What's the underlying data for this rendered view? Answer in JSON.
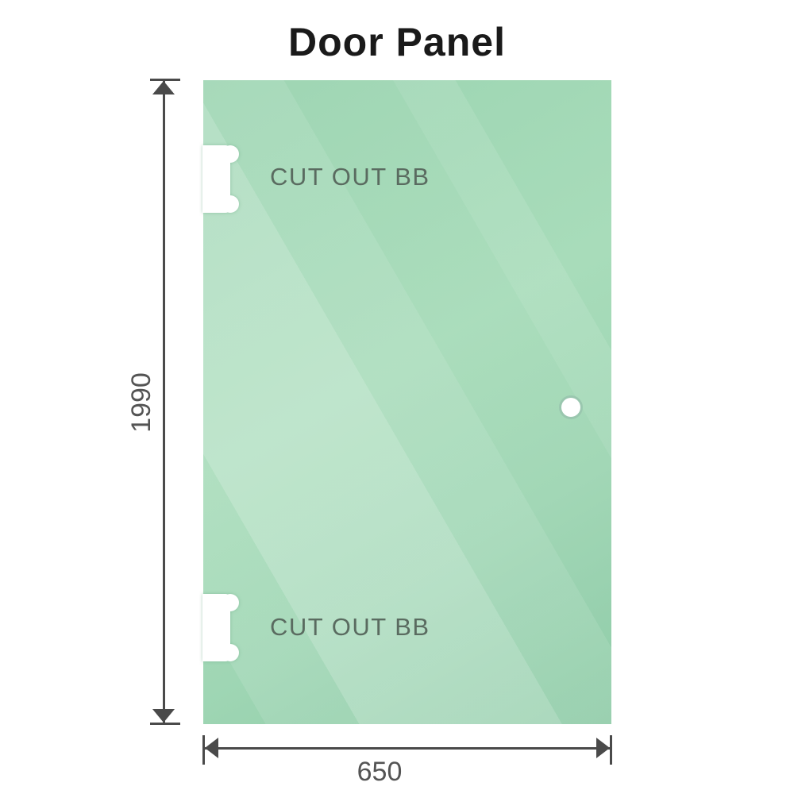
{
  "title": "Door Panel",
  "diagram": {
    "dimensions": {
      "height": "1990",
      "width": "650"
    },
    "cutouts": [
      {
        "label": "CUT OUT BB",
        "position": "top-left"
      },
      {
        "label": "CUT OUT BB",
        "position": "bottom-left"
      }
    ],
    "handle_hole": {
      "shape": "circle",
      "position": "right-middle"
    },
    "colors": {
      "glass_base": "#a6dab9",
      "glass_highlight": "#c9ebd5",
      "glass_shadow": "#8ccaa5",
      "dimension_lines": "#4a4a4a",
      "dimension_text": "#545454",
      "cutout_text": "#5a6b60",
      "title_text": "#1a1a1a",
      "background": "#ffffff"
    }
  }
}
